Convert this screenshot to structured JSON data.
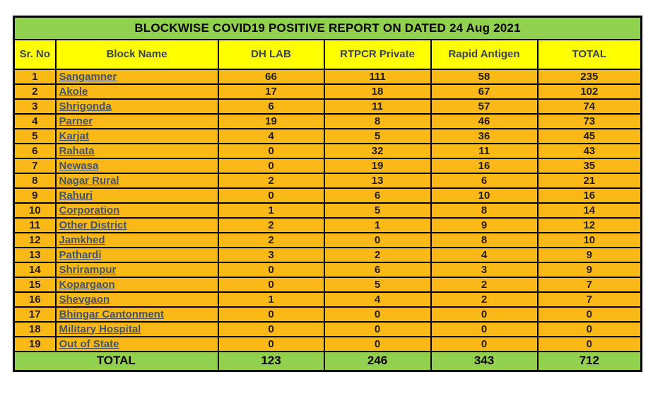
{
  "title": "BLOCKWISE COVID19 POSITIVE REPORT ON DATED 24 Aug 2021",
  "columns": [
    "Sr. No",
    "Block Name",
    "DH LAB",
    "RTPCR Private",
    "Rapid Antigen",
    "TOTAL"
  ],
  "rows": [
    {
      "sr": 1,
      "block": "Sangamner",
      "dh_lab": 66,
      "rtpcr_private": 111,
      "rapid_antigen": 58,
      "total": 235
    },
    {
      "sr": 2,
      "block": "Akole",
      "dh_lab": 17,
      "rtpcr_private": 18,
      "rapid_antigen": 67,
      "total": 102
    },
    {
      "sr": 3,
      "block": "Shrigonda",
      "dh_lab": 6,
      "rtpcr_private": 11,
      "rapid_antigen": 57,
      "total": 74
    },
    {
      "sr": 4,
      "block": "Parner",
      "dh_lab": 19,
      "rtpcr_private": 8,
      "rapid_antigen": 46,
      "total": 73
    },
    {
      "sr": 5,
      "block": "Karjat",
      "dh_lab": 4,
      "rtpcr_private": 5,
      "rapid_antigen": 36,
      "total": 45
    },
    {
      "sr": 6,
      "block": "Rahata",
      "dh_lab": 0,
      "rtpcr_private": 32,
      "rapid_antigen": 11,
      "total": 43
    },
    {
      "sr": 7,
      "block": "Newasa",
      "dh_lab": 0,
      "rtpcr_private": 19,
      "rapid_antigen": 16,
      "total": 35
    },
    {
      "sr": 8,
      "block": "Nagar Rural",
      "dh_lab": 2,
      "rtpcr_private": 13,
      "rapid_antigen": 6,
      "total": 21
    },
    {
      "sr": 9,
      "block": "Rahuri",
      "dh_lab": 0,
      "rtpcr_private": 6,
      "rapid_antigen": 10,
      "total": 16
    },
    {
      "sr": 10,
      "block": "Corporation",
      "dh_lab": 1,
      "rtpcr_private": 5,
      "rapid_antigen": 8,
      "total": 14
    },
    {
      "sr": 11,
      "block": "Other District",
      "dh_lab": 2,
      "rtpcr_private": 1,
      "rapid_antigen": 9,
      "total": 12
    },
    {
      "sr": 12,
      "block": "Jamkhed",
      "dh_lab": 2,
      "rtpcr_private": 0,
      "rapid_antigen": 8,
      "total": 10
    },
    {
      "sr": 13,
      "block": "Pathardi",
      "dh_lab": 3,
      "rtpcr_private": 2,
      "rapid_antigen": 4,
      "total": 9
    },
    {
      "sr": 14,
      "block": "Shrirampur",
      "dh_lab": 0,
      "rtpcr_private": 6,
      "rapid_antigen": 3,
      "total": 9
    },
    {
      "sr": 15,
      "block": "Kopargaon",
      "dh_lab": 0,
      "rtpcr_private": 5,
      "rapid_antigen": 2,
      "total": 7
    },
    {
      "sr": 16,
      "block": "Shevgaon",
      "dh_lab": 1,
      "rtpcr_private": 4,
      "rapid_antigen": 2,
      "total": 7
    },
    {
      "sr": 17,
      "block": "Bhingar Cantonment",
      "dh_lab": 0,
      "rtpcr_private": 0,
      "rapid_antigen": 0,
      "total": 0
    },
    {
      "sr": 18,
      "block": "Military Hospital",
      "dh_lab": 0,
      "rtpcr_private": 0,
      "rapid_antigen": 0,
      "total": 0
    },
    {
      "sr": 19,
      "block": "Out of State",
      "dh_lab": 0,
      "rtpcr_private": 0,
      "rapid_antigen": 0,
      "total": 0
    }
  ],
  "total_row": {
    "label": "TOTAL",
    "dh_lab": 123,
    "rtpcr_private": 246,
    "rapid_antigen": 343,
    "total": 712
  },
  "colors": {
    "title_bg": "#92D050",
    "header_bg": "#FFFF00",
    "row_bg": "#FBB917",
    "total_bg": "#92D050",
    "block_text": "#44546A",
    "header_text": "#3A4656",
    "number_text": "#221D19",
    "border": "#000000"
  }
}
